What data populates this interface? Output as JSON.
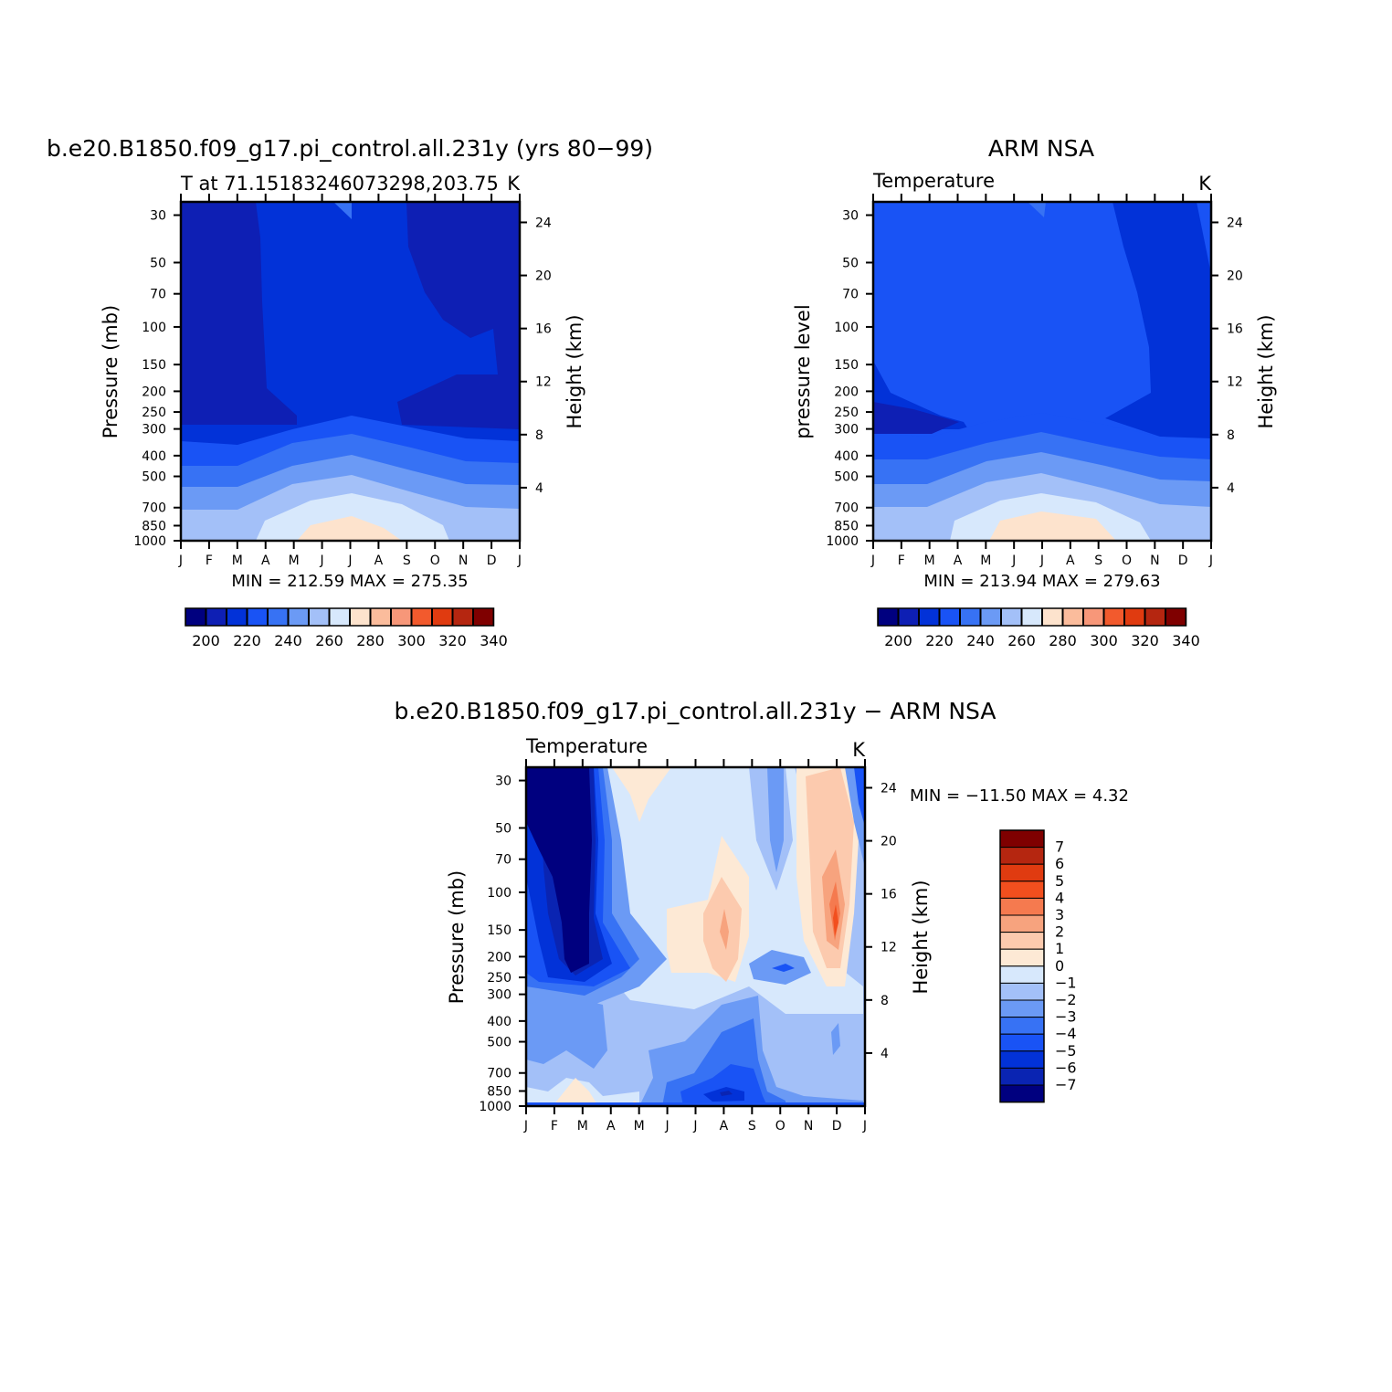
{
  "colors": {
    "palette_abs": [
      "#00007f",
      "#0e1fb4",
      "#0232d8",
      "#1953f5",
      "#3772f4",
      "#6b9af5",
      "#a3c0f8",
      "#d7e8fc",
      "#fde3cd",
      "#fbbc9c",
      "#f79779",
      "#f25a2d",
      "#e03b10",
      "#b52610",
      "#7f0000"
    ],
    "palette_diff": [
      "#00007f",
      "#0a24b2",
      "#0232d8",
      "#1953f5",
      "#3772f4",
      "#6b9af5",
      "#a3c0f8",
      "#d7e8fc",
      "#fde9d5",
      "#fccaae",
      "#f7a37e",
      "#f57a4f",
      "#f24f1e",
      "#e03b10",
      "#b52610",
      "#7f0000"
    ]
  },
  "panels": [
    {
      "id": "model",
      "main_title": "b.e20.B1850.f09_g17.pi_control.all.231y (yrs 80−99)",
      "left_string": "T at 71.15183246073298,203.75",
      "right_string": "K",
      "ylabel": "Pressure  (mb)",
      "ylabel_right": "Height  (km)",
      "stats": "MIN = 212.59  MAX = 275.35"
    },
    {
      "id": "obs",
      "main_title": "ARM NSA",
      "left_string": "Temperature",
      "right_string": "K",
      "ylabel": "pressure  level",
      "ylabel_right": "Height  (km)",
      "stats": "MIN = 213.94  MAX = 279.63"
    },
    {
      "id": "diff",
      "main_title": "b.e20.B1850.f09_g17.pi_control.all.231y − ARM NSA",
      "left_string": "Temperature",
      "right_string": "K",
      "ylabel": "Pressure  (mb)",
      "ylabel_right": "Height  (km)",
      "stats": "MIN = −11.50  MAX =    4.32"
    }
  ],
  "chart_data": [
    {
      "type": "heatmap",
      "title": "b.e20.B1850.f09_g17.pi_control.all.231y (yrs 80−99)",
      "subtitle": "T at 71.15183246073298,203.75",
      "units": "K",
      "xlabel": "",
      "ylabel": "Pressure  (mb)",
      "ylabel_right": "Height  (km)",
      "x_ticks": [
        "J",
        "F",
        "M",
        "A",
        "M",
        "J",
        "J",
        "A",
        "S",
        "O",
        "N",
        "D",
        "J"
      ],
      "y_ticks": [
        30,
        50,
        70,
        100,
        150,
        200,
        250,
        300,
        400,
        500,
        700,
        850,
        1000
      ],
      "height_ticks": [
        24,
        20,
        16,
        12,
        8,
        4
      ],
      "y_scale": "log",
      "ylim": [
        1000,
        26
      ],
      "levels": [
        200,
        210,
        220,
        230,
        240,
        250,
        260,
        270,
        280,
        290,
        300,
        310,
        320,
        330,
        340
      ],
      "colorbar_labels": [
        200,
        220,
        240,
        260,
        280,
        300,
        320,
        340
      ],
      "min": 212.59,
      "max": 275.35
    },
    {
      "type": "heatmap",
      "title": "ARM NSA",
      "subtitle": "Temperature",
      "units": "K",
      "xlabel": "",
      "ylabel": "pressure  level",
      "ylabel_right": "Height  (km)",
      "x_ticks": [
        "J",
        "F",
        "M",
        "A",
        "M",
        "J",
        "J",
        "A",
        "S",
        "O",
        "N",
        "D",
        "J"
      ],
      "y_ticks": [
        30,
        50,
        70,
        100,
        150,
        200,
        250,
        300,
        400,
        500,
        700,
        850,
        1000
      ],
      "height_ticks": [
        24,
        20,
        16,
        12,
        8,
        4
      ],
      "y_scale": "log",
      "ylim": [
        1000,
        26
      ],
      "levels": [
        200,
        210,
        220,
        230,
        240,
        250,
        260,
        270,
        280,
        290,
        300,
        310,
        320,
        330,
        340
      ],
      "colorbar_labels": [
        200,
        220,
        240,
        260,
        280,
        300,
        320,
        340
      ],
      "min": 213.94,
      "max": 279.63
    },
    {
      "type": "heatmap",
      "title": "b.e20.B1850.f09_g17.pi_control.all.231y − ARM NSA",
      "subtitle": "Temperature",
      "units": "K",
      "xlabel": "",
      "ylabel": "Pressure  (mb)",
      "ylabel_right": "Height  (km)",
      "x_ticks": [
        "J",
        "F",
        "M",
        "A",
        "M",
        "J",
        "J",
        "A",
        "S",
        "O",
        "N",
        "D",
        "J"
      ],
      "y_ticks": [
        30,
        50,
        70,
        100,
        150,
        200,
        250,
        300,
        400,
        500,
        700,
        850,
        1000
      ],
      "height_ticks": [
        24,
        20,
        16,
        12,
        8,
        4
      ],
      "y_scale": "log",
      "ylim": [
        1000,
        26
      ],
      "levels": [
        -7,
        -6,
        -5,
        -4,
        -3,
        -2,
        -1,
        0,
        1,
        2,
        3,
        4,
        5,
        6,
        7
      ],
      "colorbar_labels": [
        "7",
        "6",
        "5",
        "4",
        "3",
        "2",
        "1",
        "0",
        "−1",
        "−2",
        "−3",
        "−4",
        "−5",
        "−6",
        "−7"
      ],
      "min": -11.5,
      "max": 4.32
    }
  ]
}
